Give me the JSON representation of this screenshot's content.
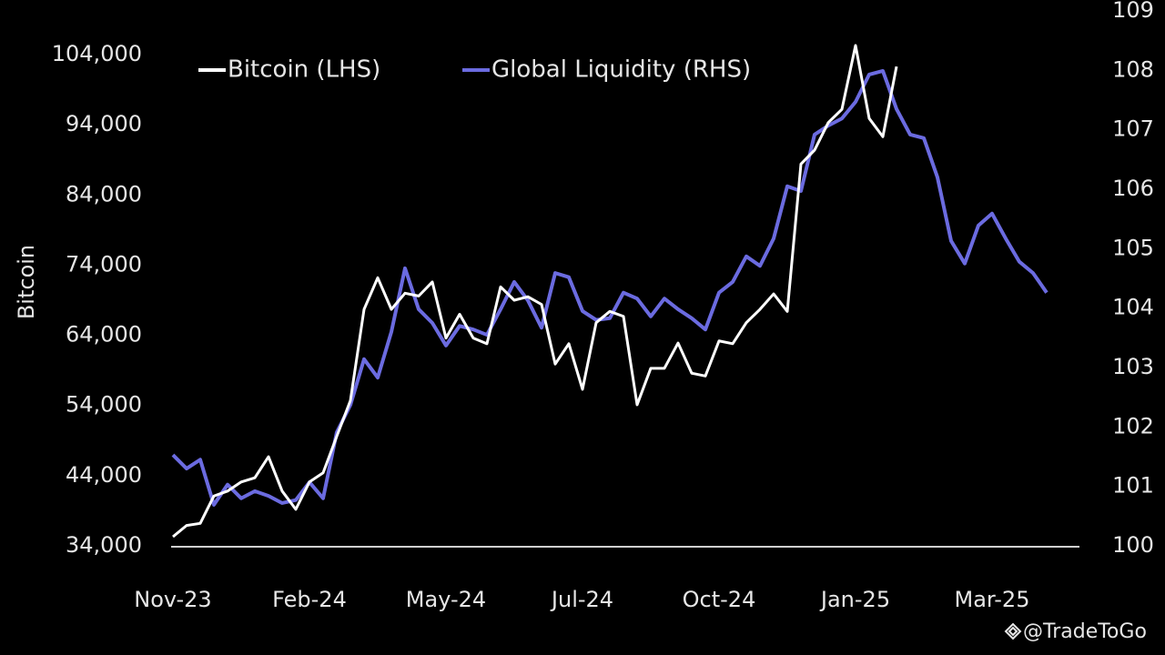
{
  "chart_data": {
    "type": "line",
    "y_label": "Bitcoin",
    "watermark": "@TradeToGo",
    "categories": [
      "Nov-23",
      null,
      null,
      null,
      null,
      null,
      null,
      null,
      null,
      null,
      "Feb-24",
      null,
      null,
      null,
      null,
      null,
      null,
      null,
      null,
      null,
      "May-24",
      null,
      null,
      null,
      null,
      null,
      null,
      null,
      null,
      null,
      "Jul-24",
      null,
      null,
      null,
      null,
      null,
      null,
      null,
      null,
      null,
      "Oct-24",
      null,
      null,
      null,
      null,
      null,
      null,
      null,
      null,
      null,
      "Jan-25",
      null,
      null,
      null,
      null,
      null,
      null,
      null,
      null,
      null,
      "Mar-25",
      null,
      null,
      null,
      null
    ],
    "series": [
      {
        "name": "Bitcoin (LHS)",
        "color": "#ffffff",
        "axis": "y",
        "values": [
          35300,
          36900,
          37200,
          41100,
          41800,
          43100,
          43700,
          46700,
          41800,
          39200,
          43100,
          44400,
          49600,
          54700,
          67700,
          72200,
          67700,
          70000,
          69600,
          71600,
          63600,
          67000,
          63600,
          62800,
          70900,
          69000,
          69500,
          68400,
          59900,
          62800,
          56300,
          65800,
          67400,
          66700,
          54100,
          59300,
          59300,
          62900,
          58600,
          58200,
          63200,
          62800,
          65800,
          67700,
          69900,
          67400,
          88400,
          90400,
          94300,
          96200,
          105300,
          94900,
          92300,
          102300,
          null,
          null,
          null,
          null,
          null,
          null,
          null,
          null,
          null,
          null,
          null
        ]
      },
      {
        "name": "Global Liquidity (RHS)",
        "color": "#6b6be0",
        "axis": "y2",
        "values": [
          101.53,
          101.3,
          101.45,
          100.69,
          101.03,
          100.8,
          100.92,
          100.84,
          100.72,
          100.77,
          101.07,
          100.8,
          101.91,
          102.37,
          103.14,
          102.83,
          103.6,
          104.67,
          103.98,
          103.75,
          103.37,
          103.7,
          103.64,
          103.55,
          103.98,
          104.44,
          104.13,
          103.67,
          104.59,
          104.52,
          103.95,
          103.8,
          103.83,
          104.26,
          104.16,
          103.86,
          104.16,
          103.98,
          103.83,
          103.64,
          104.26,
          104.44,
          104.87,
          104.71,
          105.17,
          106.05,
          105.97,
          106.92,
          107.07,
          107.19,
          107.47,
          107.93,
          107.99,
          107.35,
          106.92,
          106.86,
          106.2,
          105.13,
          104.75,
          105.39,
          105.59,
          105.17,
          104.78,
          104.59,
          104.26
        ]
      }
    ],
    "ylim": [
      34000,
      104000
    ],
    "yticks": [
      {
        "value": 34000,
        "label": "34,000"
      },
      {
        "value": 44000,
        "label": "44,000"
      },
      {
        "value": 54000,
        "label": "54,000"
      },
      {
        "value": 64000,
        "label": "64,000"
      },
      {
        "value": 74000,
        "label": "74,000"
      },
      {
        "value": 84000,
        "label": "84,000"
      },
      {
        "value": 94000,
        "label": "94,000"
      },
      {
        "value": 104000,
        "label": "104,000"
      }
    ],
    "y2lim": [
      100,
      109
    ],
    "y2ticks": [
      100,
      101,
      102,
      103,
      104,
      105,
      106,
      107,
      108,
      109
    ],
    "grid": false,
    "legend": "top"
  }
}
